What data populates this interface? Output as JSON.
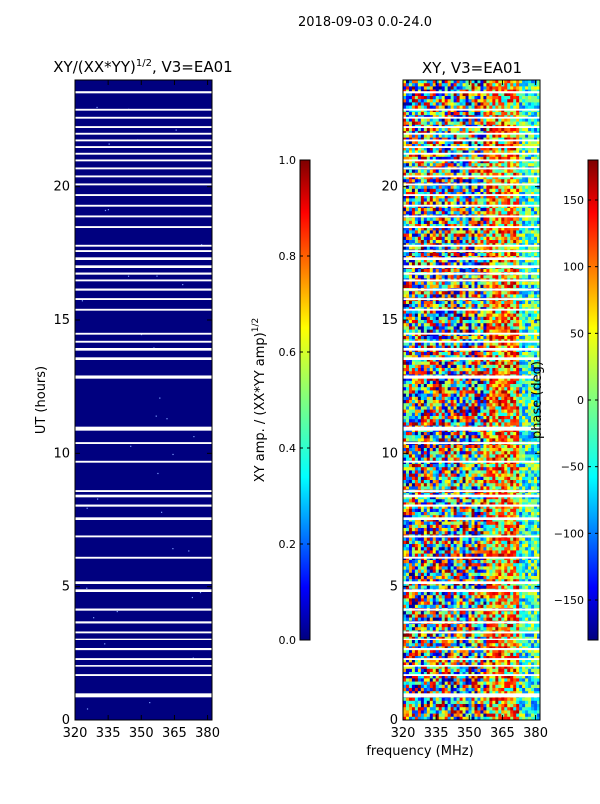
{
  "suptitle": "2018-09-03 0.0-24.0",
  "colors": {
    "navy": "#00007f",
    "jet": [
      "#00007f",
      "#0000ff",
      "#007fff",
      "#00ffff",
      "#7fff7f",
      "#ffff00",
      "#ff7f00",
      "#ff0000",
      "#7f0000"
    ]
  },
  "chart_data": [
    {
      "id": "amp",
      "type": "heatmap",
      "title_main": "XY/(XX*YY)",
      "title_sup": "1/2",
      "title_tail": ", V3=EA01",
      "ylabel": "UT (hours)",
      "xlabel": "",
      "xlim": [
        320,
        382
      ],
      "ylim": [
        0,
        24
      ],
      "xticks": [
        320,
        335,
        350,
        365,
        380
      ],
      "yticks": [
        0,
        5,
        10,
        15,
        20
      ],
      "dominant_value": 0.0,
      "flagged_time_bands_hours": [
        [
          0.85,
          1.0
        ],
        [
          1.65,
          1.72
        ],
        [
          2.0,
          2.06
        ],
        [
          2.25,
          2.32
        ],
        [
          2.62,
          2.7
        ],
        [
          3.0,
          3.05
        ],
        [
          3.25,
          3.32
        ],
        [
          3.62,
          3.7
        ],
        [
          4.1,
          4.18
        ],
        [
          4.8,
          4.9
        ],
        [
          5.1,
          5.2
        ],
        [
          6.05,
          6.12
        ],
        [
          6.85,
          6.92
        ],
        [
          7.5,
          7.6
        ],
        [
          8.0,
          8.08
        ],
        [
          8.35,
          8.45
        ],
        [
          8.55,
          8.62
        ],
        [
          9.65,
          9.72
        ],
        [
          10.35,
          10.42
        ],
        [
          10.85,
          11.0
        ],
        [
          12.8,
          12.92
        ],
        [
          13.5,
          13.6
        ],
        [
          13.85,
          13.95
        ],
        [
          14.15,
          14.22
        ],
        [
          14.45,
          14.52
        ],
        [
          15.35,
          15.42
        ],
        [
          15.75,
          15.82
        ],
        [
          16.1,
          16.18
        ],
        [
          16.45,
          16.52
        ],
        [
          16.7,
          16.78
        ],
        [
          16.95,
          17.05
        ],
        [
          17.25,
          17.35
        ],
        [
          17.55,
          17.62
        ],
        [
          17.75,
          17.82
        ],
        [
          18.45,
          18.52
        ],
        [
          18.85,
          18.92
        ],
        [
          19.25,
          19.32
        ],
        [
          19.65,
          19.72
        ],
        [
          20.05,
          20.12
        ],
        [
          20.35,
          20.42
        ],
        [
          20.65,
          20.72
        ],
        [
          20.95,
          21.02
        ],
        [
          21.2,
          21.27
        ],
        [
          21.45,
          21.52
        ],
        [
          21.7,
          21.77
        ],
        [
          21.95,
          22.02
        ],
        [
          22.2,
          22.27
        ],
        [
          22.55,
          22.62
        ],
        [
          22.85,
          22.92
        ],
        [
          23.5,
          23.58
        ]
      ],
      "colorbar": {
        "label_main": "XY amp. / (XX*YY amp)",
        "label_sup": "1/2",
        "range": [
          0.0,
          1.0
        ],
        "ticks": [
          "0.0",
          "0.2",
          "0.4",
          "0.6",
          "0.8",
          "1.0"
        ],
        "tick_values": [
          0.0,
          0.2,
          0.4,
          0.6,
          0.8,
          1.0
        ]
      }
    },
    {
      "id": "phase",
      "type": "heatmap",
      "title": "XY, V3=EA01",
      "xlabel": "frequency (MHz)",
      "ylabel": "",
      "xlim": [
        320,
        382
      ],
      "ylim": [
        0,
        24
      ],
      "xticks": [
        320,
        335,
        350,
        365,
        380
      ],
      "yticks": [
        0,
        5,
        10,
        15,
        20
      ],
      "value_range": [
        -180,
        180
      ],
      "flagged_time_bands_hours": [
        [
          0.85,
          1.0
        ],
        [
          1.65,
          1.72
        ],
        [
          2.0,
          2.06
        ],
        [
          2.25,
          2.32
        ],
        [
          2.62,
          2.7
        ],
        [
          3.0,
          3.05
        ],
        [
          3.25,
          3.32
        ],
        [
          3.62,
          3.7
        ],
        [
          4.1,
          4.18
        ],
        [
          4.8,
          4.9
        ],
        [
          5.1,
          5.2
        ],
        [
          6.05,
          6.12
        ],
        [
          6.85,
          6.92
        ],
        [
          7.5,
          7.6
        ],
        [
          8.0,
          8.08
        ],
        [
          8.35,
          8.45
        ],
        [
          8.55,
          8.62
        ],
        [
          9.65,
          9.72
        ],
        [
          10.35,
          10.42
        ],
        [
          10.85,
          11.0
        ],
        [
          12.8,
          12.92
        ],
        [
          13.5,
          13.6
        ],
        [
          13.85,
          13.95
        ],
        [
          14.15,
          14.22
        ],
        [
          14.45,
          14.52
        ],
        [
          15.35,
          15.42
        ],
        [
          15.75,
          15.82
        ],
        [
          16.1,
          16.18
        ],
        [
          16.45,
          16.52
        ],
        [
          16.7,
          16.78
        ],
        [
          16.95,
          17.05
        ],
        [
          17.25,
          17.35
        ],
        [
          17.55,
          17.62
        ],
        [
          17.75,
          17.82
        ],
        [
          18.45,
          18.52
        ],
        [
          18.85,
          18.92
        ],
        [
          19.25,
          19.32
        ],
        [
          19.65,
          19.72
        ],
        [
          20.05,
          20.12
        ],
        [
          20.35,
          20.42
        ],
        [
          20.65,
          20.72
        ],
        [
          20.95,
          21.02
        ],
        [
          21.2,
          21.27
        ],
        [
          21.45,
          21.52
        ],
        [
          21.7,
          21.77
        ],
        [
          21.95,
          22.02
        ],
        [
          22.2,
          22.27
        ],
        [
          22.55,
          22.62
        ],
        [
          22.85,
          22.92
        ],
        [
          23.5,
          23.58
        ]
      ],
      "colorbar": {
        "label": "phase (deg)",
        "range": [
          -180,
          180
        ],
        "ticks": [
          "−150",
          "−100",
          "−50",
          "0",
          "50",
          "100",
          "150"
        ],
        "tick_values": [
          -150,
          -100,
          -50,
          0,
          50,
          100,
          150
        ]
      }
    }
  ]
}
